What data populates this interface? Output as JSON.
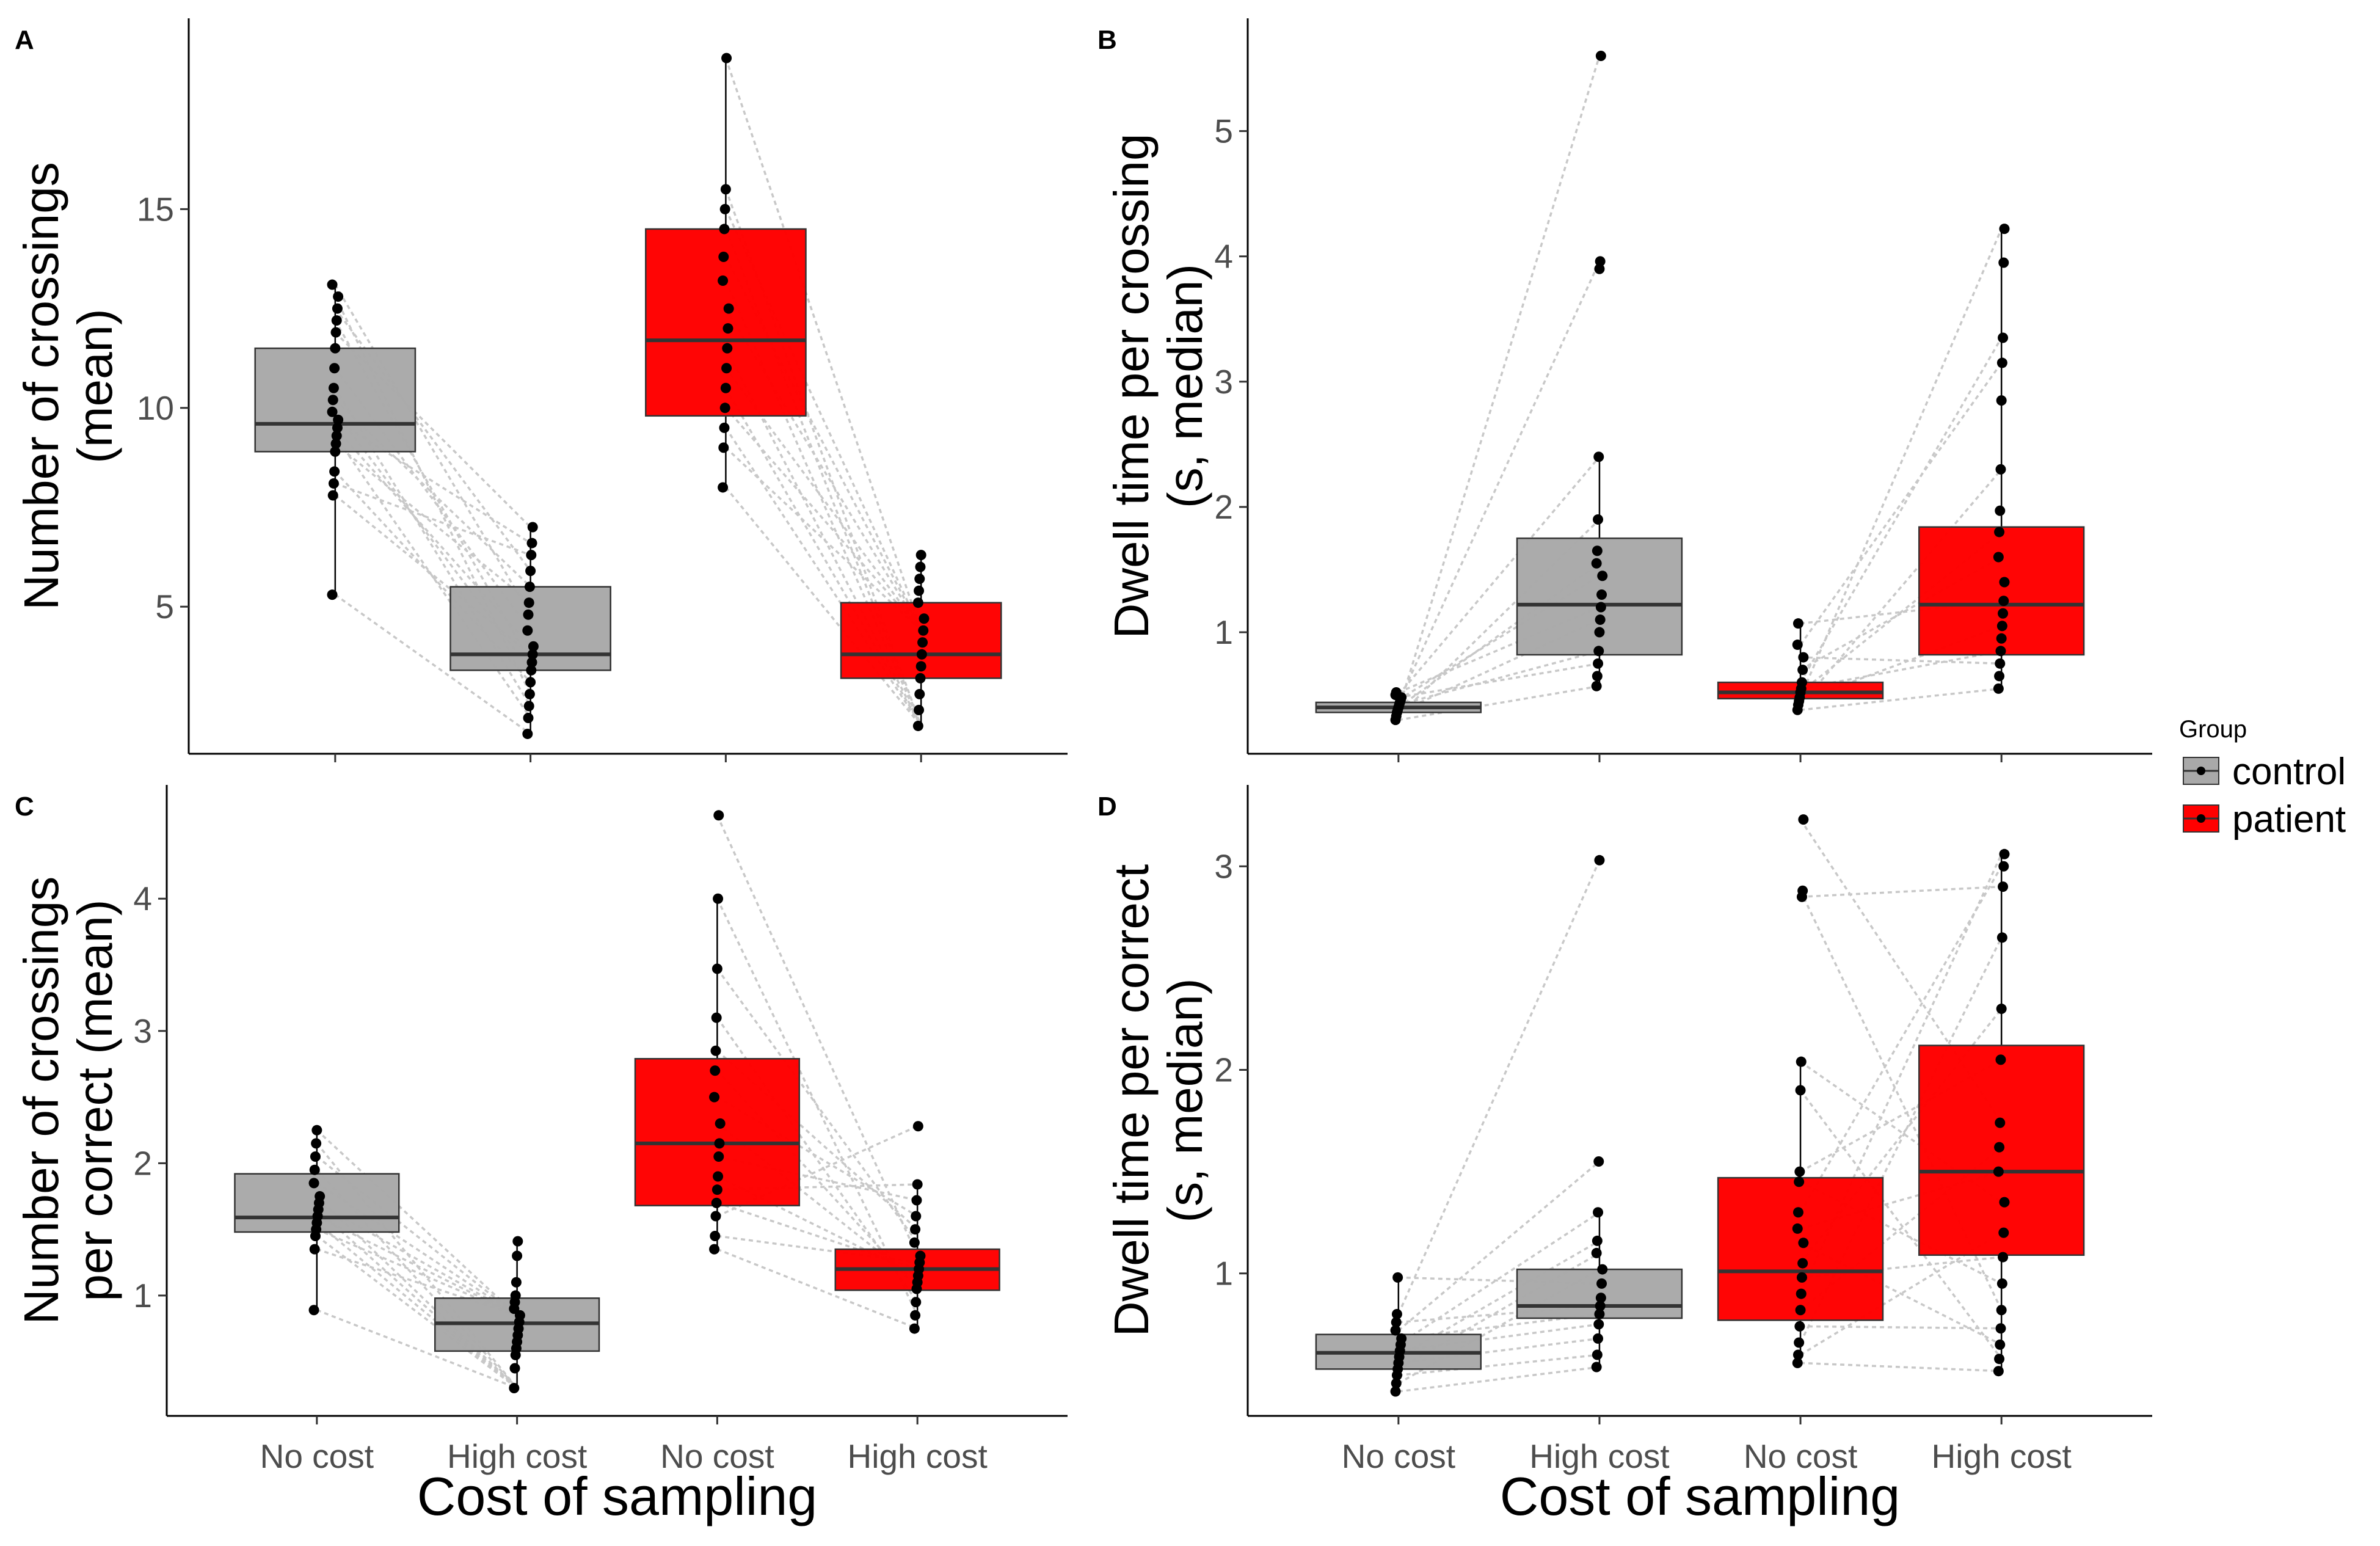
{
  "legend": {
    "title": "Group",
    "entries": [
      {
        "label": "control",
        "color": "#a9a9a9"
      },
      {
        "label": "patient",
        "color": "#ff0000"
      }
    ]
  },
  "chart_data": [
    {
      "panel": "A",
      "type": "boxplot",
      "ylabel": [
        "Number of crossings",
        "(mean)"
      ],
      "xlabel": "",
      "categories": [
        "No cost",
        "High cost",
        "No cost",
        "High cost"
      ],
      "groups": [
        "control",
        "control",
        "patient",
        "patient"
      ],
      "ylim": [
        1.3,
        19.8
      ],
      "yticks": [
        5,
        10,
        15
      ],
      "boxes": [
        {
          "q1": 8.9,
          "median": 9.6,
          "q3": 11.5,
          "whisker_low": 5.3,
          "whisker_high": 13.1
        },
        {
          "q1": 3.4,
          "median": 3.8,
          "q3": 5.5,
          "whisker_low": 1.8,
          "whisker_high": 7.0
        },
        {
          "q1": 9.8,
          "median": 11.7,
          "q3": 14.5,
          "whisker_low": 8.0,
          "whisker_high": 18.8
        },
        {
          "q1": 3.2,
          "median": 3.8,
          "q3": 5.1,
          "whisker_low": 2.0,
          "whisker_high": 6.3
        }
      ],
      "points": [
        [
          5.3,
          7.8,
          8.1,
          8.4,
          8.9,
          9.1,
          9.3,
          9.5,
          9.7,
          9.9,
          10.2,
          10.5,
          11.0,
          11.5,
          11.9,
          12.2,
          12.5,
          12.8,
          13.1
        ],
        [
          1.8,
          2.2,
          2.5,
          2.8,
          3.1,
          3.4,
          3.6,
          3.8,
          4.0,
          4.4,
          4.8,
          5.1,
          5.5,
          5.9,
          6.3,
          6.6,
          7.0
        ],
        [
          8.0,
          9.0,
          9.5,
          10.0,
          10.5,
          11.0,
          11.5,
          12.0,
          12.5,
          13.2,
          13.8,
          14.5,
          15.0,
          15.5,
          18.8
        ],
        [
          2.0,
          2.4,
          2.8,
          3.2,
          3.5,
          3.8,
          4.1,
          4.4,
          4.7,
          5.1,
          5.4,
          5.7,
          6.0,
          6.3
        ]
      ]
    },
    {
      "panel": "B",
      "type": "boxplot",
      "ylabel": [
        "Dwell time per crossing",
        "(s, median)"
      ],
      "xlabel": "",
      "categories": [
        "No cost",
        "High cost",
        "No cost",
        "High cost"
      ],
      "groups": [
        "control",
        "control",
        "patient",
        "patient"
      ],
      "ylim": [
        0.03,
        5.9
      ],
      "yticks": [
        1,
        2,
        3,
        4,
        5
      ],
      "boxes": [
        {
          "q1": 0.36,
          "median": 0.4,
          "q3": 0.44,
          "whisker_low": 0.3,
          "whisker_high": 0.52
        },
        {
          "q1": 0.82,
          "median": 1.22,
          "q3": 1.75,
          "whisker_low": 0.57,
          "whisker_high": 2.4
        },
        {
          "q1": 0.47,
          "median": 0.52,
          "q3": 0.6,
          "whisker_low": 0.38,
          "whisker_high": 1.07
        },
        {
          "q1": 0.82,
          "median": 1.22,
          "q3": 1.84,
          "whisker_low": 0.55,
          "whisker_high": 4.22
        }
      ],
      "points": [
        [
          0.3,
          0.33,
          0.36,
          0.38,
          0.4,
          0.42,
          0.44,
          0.46,
          0.48,
          0.5,
          0.52
        ],
        [
          0.57,
          0.65,
          0.75,
          0.85,
          1.0,
          1.1,
          1.2,
          1.3,
          1.45,
          1.55,
          1.65,
          1.9,
          2.4,
          3.9,
          3.96,
          5.6
        ],
        [
          0.38,
          0.42,
          0.45,
          0.48,
          0.52,
          0.55,
          0.6,
          0.7,
          0.8,
          0.9,
          1.07
        ],
        [
          0.55,
          0.65,
          0.75,
          0.85,
          0.95,
          1.05,
          1.15,
          1.25,
          1.4,
          1.6,
          1.8,
          1.97,
          2.3,
          2.85,
          3.15,
          3.35,
          3.95,
          4.22
        ]
      ]
    },
    {
      "panel": "C",
      "type": "boxplot",
      "ylabel": [
        "Number of crossings",
        "per correct (mean)"
      ],
      "xlabel": "Cost of sampling",
      "categories": [
        "No cost",
        "High cost",
        "No cost",
        "High cost"
      ],
      "groups": [
        "control",
        "control",
        "patient",
        "patient"
      ],
      "ylim": [
        0.09,
        4.86
      ],
      "yticks": [
        1,
        2,
        3,
        4
      ],
      "boxes": [
        {
          "q1": 1.48,
          "median": 1.59,
          "q3": 1.92,
          "whisker_low": 0.89,
          "whisker_high": 2.25
        },
        {
          "q1": 0.58,
          "median": 0.79,
          "q3": 0.98,
          "whisker_low": 0.3,
          "whisker_high": 1.41
        },
        {
          "q1": 1.68,
          "median": 2.15,
          "q3": 2.79,
          "whisker_low": 1.35,
          "whisker_high": 4.0
        },
        {
          "q1": 1.04,
          "median": 1.2,
          "q3": 1.35,
          "whisker_low": 0.75,
          "whisker_high": 1.84
        }
      ],
      "points": [
        [
          0.89,
          1.35,
          1.45,
          1.5,
          1.55,
          1.6,
          1.65,
          1.7,
          1.75,
          1.85,
          1.95,
          2.05,
          2.15,
          2.25
        ],
        [
          0.3,
          0.45,
          0.55,
          0.6,
          0.65,
          0.7,
          0.75,
          0.8,
          0.85,
          0.9,
          0.95,
          1.0,
          1.1,
          1.3,
          1.41
        ],
        [
          1.35,
          1.45,
          1.6,
          1.7,
          1.8,
          1.9,
          2.05,
          2.15,
          2.3,
          2.5,
          2.7,
          2.85,
          3.1,
          3.47,
          4.0,
          4.63
        ],
        [
          0.75,
          0.85,
          0.95,
          1.05,
          1.1,
          1.15,
          1.2,
          1.25,
          1.3,
          1.4,
          1.5,
          1.6,
          1.72,
          1.84,
          2.28
        ]
      ]
    },
    {
      "panel": "D",
      "type": "boxplot",
      "ylabel": [
        "Dwell time per correct",
        "(s, median)"
      ],
      "xlabel": "Cost of sampling",
      "categories": [
        "No cost",
        "High cost",
        "No cost",
        "High cost"
      ],
      "groups": [
        "control",
        "control",
        "patient",
        "patient"
      ],
      "ylim": [
        0.3,
        3.4
      ],
      "yticks": [
        1,
        2,
        3
      ],
      "boxes": [
        {
          "q1": 0.53,
          "median": 0.61,
          "q3": 0.7,
          "whisker_low": 0.42,
          "whisker_high": 0.98
        },
        {
          "q1": 0.78,
          "median": 0.84,
          "q3": 1.02,
          "whisker_low": 0.54,
          "whisker_high": 1.3
        },
        {
          "q1": 0.77,
          "median": 1.01,
          "q3": 1.47,
          "whisker_low": 0.56,
          "whisker_high": 2.04
        },
        {
          "q1": 1.09,
          "median": 1.5,
          "q3": 2.12,
          "whisker_low": 0.52,
          "whisker_high": 3.06
        }
      ],
      "points": [
        [
          0.42,
          0.46,
          0.5,
          0.53,
          0.56,
          0.59,
          0.62,
          0.65,
          0.68,
          0.72,
          0.76,
          0.8,
          0.98
        ],
        [
          0.54,
          0.6,
          0.68,
          0.75,
          0.8,
          0.84,
          0.88,
          0.95,
          1.02,
          1.1,
          1.16,
          1.3,
          1.55,
          3.03
        ],
        [
          0.56,
          0.6,
          0.66,
          0.74,
          0.82,
          0.9,
          0.98,
          1.05,
          1.15,
          1.22,
          1.3,
          1.45,
          1.5,
          1.9,
          2.04,
          2.85,
          2.88,
          3.23
        ],
        [
          0.52,
          0.58,
          0.65,
          0.73,
          0.82,
          0.95,
          1.08,
          1.2,
          1.35,
          1.5,
          1.62,
          1.74,
          2.05,
          2.3,
          2.65,
          2.9,
          3.0,
          3.06
        ]
      ]
    }
  ]
}
